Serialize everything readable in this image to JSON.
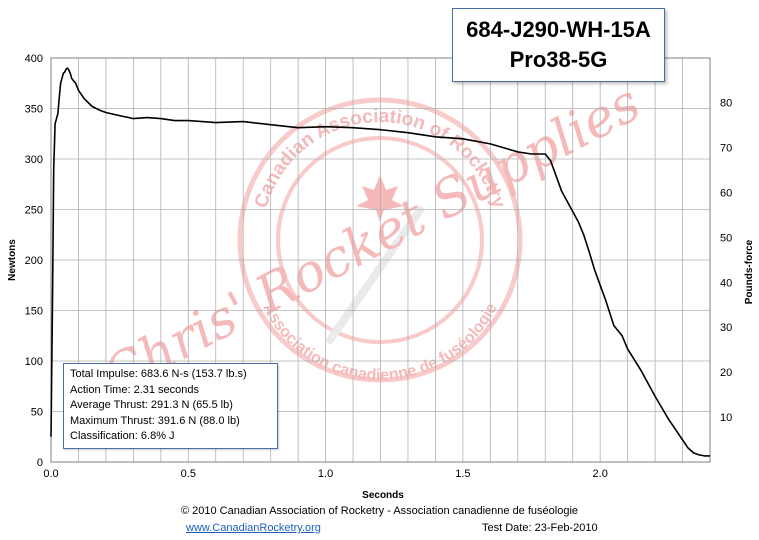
{
  "chart_data": {
    "type": "line",
    "title": "684-J290-WH-15A",
    "subtitle": "Pro38-5G",
    "xlabel": "Seconds",
    "ylabel": "Newtons",
    "y2label": "Pounds-force",
    "xlim": [
      0,
      2.4
    ],
    "ylim": [
      0,
      400
    ],
    "y2lim": [
      0,
      89.92
    ],
    "x_ticks": [
      0.0,
      0.5,
      1.0,
      1.5,
      2.0
    ],
    "x_tick_labels": [
      "0.0",
      "0.5",
      "1.0",
      "1.5",
      "2.0"
    ],
    "x_minor_step": 0.1,
    "y_ticks": [
      0,
      50,
      100,
      150,
      200,
      250,
      300,
      350,
      400
    ],
    "y_tick_labels": [
      "0",
      "50",
      "100",
      "150",
      "200",
      "250",
      "300",
      "350",
      "400"
    ],
    "y2_ticks": [
      10,
      20,
      30,
      40,
      50,
      60,
      70,
      80
    ],
    "y2_tick_labels": [
      "10",
      "20",
      "30",
      "40",
      "50",
      "60",
      "70",
      "80"
    ],
    "grid": true,
    "series": [
      {
        "color": "#000000",
        "x": [
          0.0,
          0.005,
          0.01,
          0.015,
          0.02,
          0.025,
          0.03,
          0.035,
          0.04,
          0.045,
          0.05,
          0.055,
          0.06,
          0.065,
          0.07,
          0.075,
          0.08,
          0.09,
          0.1,
          0.12,
          0.15,
          0.18,
          0.2,
          0.25,
          0.3,
          0.35,
          0.4,
          0.45,
          0.5,
          0.6,
          0.7,
          0.8,
          0.9,
          1.0,
          1.1,
          1.2,
          1.3,
          1.4,
          1.5,
          1.6,
          1.7,
          1.75,
          1.8,
          1.82,
          1.84,
          1.86,
          1.88,
          1.9,
          1.92,
          1.94,
          1.96,
          1.98,
          2.0,
          2.02,
          2.05,
          2.08,
          2.1,
          2.15,
          2.2,
          2.25,
          2.3,
          2.32,
          2.34,
          2.36,
          2.38,
          2.4
        ],
        "y": [
          25,
          150,
          290,
          335,
          340,
          345,
          360,
          375,
          380,
          385,
          386,
          389,
          390,
          388,
          385,
          380,
          378,
          375,
          368,
          360,
          352,
          348,
          346,
          343,
          340,
          341,
          340,
          338,
          338,
          336,
          337,
          334,
          331,
          332,
          331,
          329,
          326,
          322,
          320,
          315,
          307,
          305,
          305,
          298,
          283,
          268,
          258,
          248,
          238,
          225,
          208,
          190,
          175,
          160,
          135,
          125,
          112,
          90,
          65,
          42,
          22,
          14,
          9,
          7,
          6,
          6
        ]
      }
    ]
  },
  "stats": {
    "total_impulse": "Total Impulse: 683.6 N-s (153.7 lb.s)",
    "action_time": "Action Time: 2.31 seconds",
    "average_thrust": "Average Thrust: 291.3 N (65.5 lb)",
    "maximum_thrust": "Maximum Thrust: 391.6 N (88.0 lb)",
    "classification": "Classification: 6.8% J"
  },
  "watermark": {
    "outer_text": "Canadian Association of Rocketry",
    "inner_text": "Association canadienne de fuséologie",
    "overlay_text": "Chris' Rocket Supplies",
    "color": "#f08080"
  },
  "footer": {
    "copyright": "© 2010 Canadian Association of Rocketry - Association canadienne de fuséologie",
    "link": "www.CanadianRocketry.org",
    "test_date": "Test  Date: 23-Feb-2010"
  },
  "colors": {
    "plot_border": "#808080",
    "grid": "#b0b0b0",
    "box_border": "#4a6fa5",
    "link": "#1f5fbf"
  }
}
